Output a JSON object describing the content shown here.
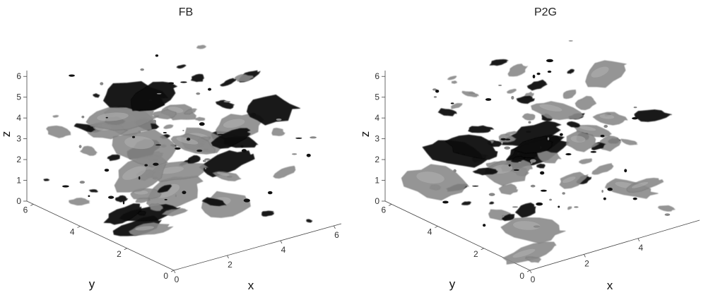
{
  "chart_data": [
    {
      "type": "3d-isosurface",
      "title": "FB",
      "xlabel": "x",
      "ylabel": "y",
      "zlabel": "z",
      "xticks": [
        "0",
        "2",
        "4",
        "6"
      ],
      "yticks": [
        "0",
        "2",
        "4",
        "6"
      ],
      "zticks": [
        "0",
        "1",
        "2",
        "3",
        "4",
        "5",
        "6"
      ],
      "xlim": [
        0,
        6.28
      ],
      "ylim": [
        0,
        6.28
      ],
      "zlim": [
        0,
        6.28
      ],
      "surface_colors": {
        "positive": "#8a8a8a",
        "negative": "#0a0a0a"
      },
      "description_seed": 11
    },
    {
      "type": "3d-isosurface",
      "title": "P2G",
      "xlabel": "x",
      "ylabel": "y",
      "zlabel": "z",
      "xticks": [
        "0",
        "2",
        "4"
      ],
      "yticks": [
        "0",
        "2",
        "4",
        "6"
      ],
      "zticks": [
        "0",
        "1",
        "2",
        "3",
        "4",
        "5",
        "6"
      ],
      "xlim": [
        0,
        6.28
      ],
      "ylim": [
        0,
        6.28
      ],
      "zlim": [
        0,
        6.28
      ],
      "surface_colors": {
        "positive": "#8a8a8a",
        "negative": "#0a0a0a"
      },
      "description_seed": 29
    }
  ]
}
